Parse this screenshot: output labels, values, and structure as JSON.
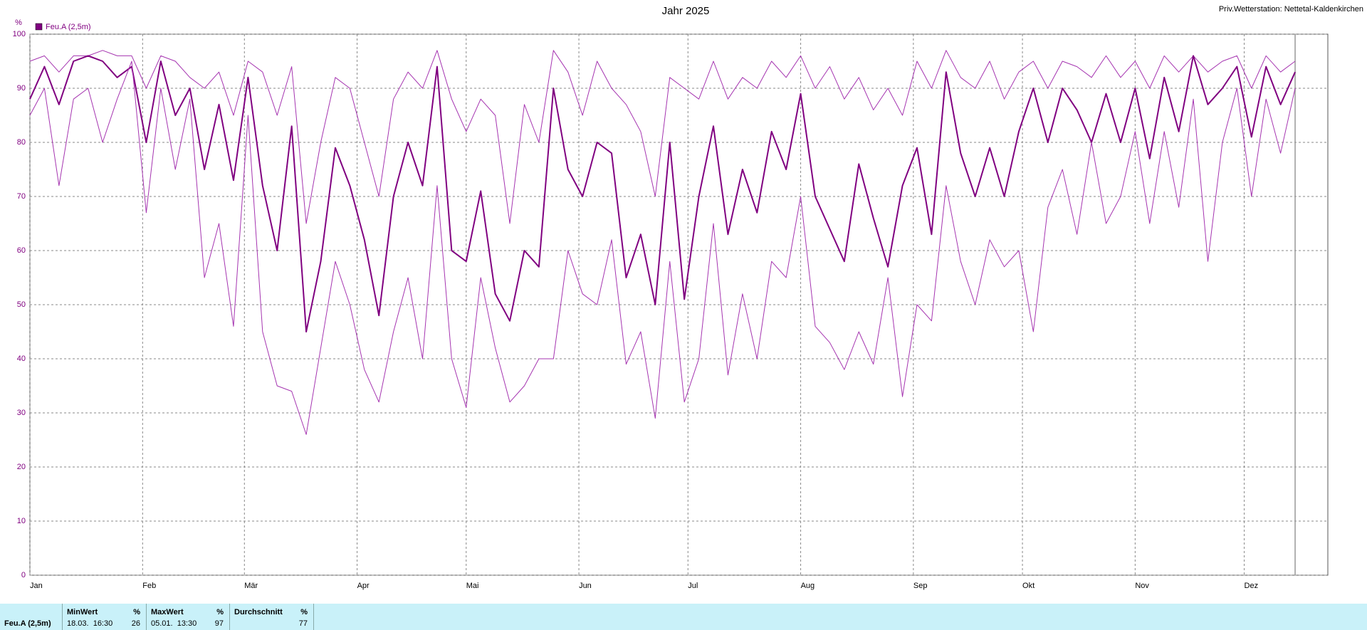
{
  "chart_data": {
    "type": "line",
    "title": "Jahr 2025",
    "subtitle": "Priv.Wetterstation: Nettetal-Kaldenkirchen",
    "y_label": "%",
    "x": [
      1,
      5,
      9,
      13,
      17,
      21,
      25,
      29,
      33,
      37,
      41,
      45,
      49,
      53,
      57,
      61,
      65,
      69,
      73,
      77,
      81,
      85,
      89,
      93,
      97,
      101,
      105,
      109,
      113,
      117,
      121,
      125,
      129,
      133,
      137,
      141,
      145,
      149,
      153,
      157,
      161,
      165,
      169,
      173,
      177,
      181,
      185,
      189,
      193,
      197,
      201,
      205,
      209,
      213,
      217,
      221,
      225,
      229,
      233,
      237,
      241,
      245,
      249,
      253,
      257,
      261,
      265,
      269,
      273,
      277,
      281,
      285,
      289,
      293,
      297,
      301,
      305,
      309,
      313,
      317,
      321,
      325,
      329,
      333,
      337,
      341,
      345,
      349
    ],
    "series": [
      {
        "color": "#a534b0",
        "width": 1,
        "values": [
          95,
          96,
          93,
          96,
          96,
          97,
          96,
          96,
          90,
          96,
          95,
          92,
          90,
          93,
          85,
          95,
          93,
          85,
          94,
          65,
          80,
          92,
          90,
          80,
          70,
          88,
          93,
          90,
          97,
          88,
          82,
          88,
          85,
          65,
          87,
          80,
          97,
          93,
          85,
          95,
          90,
          87,
          82,
          70,
          92,
          90,
          88,
          95,
          88,
          92,
          90,
          95,
          92,
          96,
          90,
          94,
          88,
          92,
          86,
          90,
          85,
          95,
          90,
          97,
          92,
          90,
          95,
          88,
          93,
          95,
          90,
          95,
          94,
          92,
          96,
          92,
          95,
          90,
          96,
          93,
          96,
          93,
          95,
          96,
          90,
          96,
          93,
          95
        ]
      },
      {
        "name": "Feu.A (2,5m)",
        "color": "#800080",
        "width": 2,
        "values": [
          88,
          94,
          87,
          95,
          96,
          95,
          92,
          94,
          80,
          95,
          85,
          90,
          75,
          87,
          73,
          92,
          72,
          60,
          83,
          45,
          58,
          79,
          72,
          62,
          48,
          70,
          80,
          72,
          94,
          60,
          58,
          71,
          52,
          47,
          60,
          57,
          90,
          75,
          70,
          80,
          78,
          55,
          63,
          50,
          80,
          51,
          70,
          83,
          63,
          75,
          67,
          82,
          75,
          89,
          70,
          64,
          58,
          76,
          66,
          57,
          72,
          79,
          63,
          93,
          78,
          70,
          79,
          70,
          82,
          90,
          80,
          90,
          86,
          80,
          89,
          80,
          90,
          77,
          92,
          82,
          96,
          87,
          90,
          94,
          81,
          94,
          87,
          93
        ]
      },
      {
        "color": "#a534b0",
        "width": 1,
        "values": [
          85,
          90,
          72,
          88,
          90,
          80,
          88,
          95,
          67,
          90,
          75,
          88,
          55,
          65,
          46,
          85,
          45,
          35,
          34,
          26,
          42,
          58,
          50,
          38,
          32,
          45,
          55,
          40,
          72,
          40,
          31,
          55,
          42,
          32,
          35,
          40,
          40,
          60,
          52,
          50,
          62,
          39,
          45,
          29,
          58,
          32,
          40,
          65,
          37,
          52,
          40,
          58,
          55,
          70,
          46,
          43,
          38,
          45,
          39,
          55,
          33,
          50,
          47,
          72,
          58,
          50,
          62,
          57,
          60,
          45,
          68,
          75,
          63,
          80,
          65,
          70,
          82,
          65,
          82,
          68,
          88,
          58,
          80,
          90,
          70,
          88,
          78,
          90
        ]
      }
    ],
    "xlim": [
      1,
      358
    ],
    "xticks": [
      {
        "value": 1,
        "label": "Jan"
      },
      {
        "value": 32,
        "label": "Feb"
      },
      {
        "value": 60,
        "label": "Mär"
      },
      {
        "value": 91,
        "label": "Apr"
      },
      {
        "value": 121,
        "label": "Mai"
      },
      {
        "value": 152,
        "label": "Jun"
      },
      {
        "value": 182,
        "label": "Jul"
      },
      {
        "value": 213,
        "label": "Aug"
      },
      {
        "value": 244,
        "label": "Sep"
      },
      {
        "value": 274,
        "label": "Okt"
      },
      {
        "value": 305,
        "label": "Nov"
      },
      {
        "value": 335,
        "label": "Dez"
      }
    ],
    "ylim": [
      0,
      100
    ],
    "yticks": [
      0,
      10,
      20,
      30,
      40,
      50,
      60,
      70,
      80,
      90,
      100
    ],
    "grid": true
  },
  "table": {
    "row_label": "Feu.A (2,5m)",
    "columns": [
      {
        "header": "MinWert",
        "unit": "%",
        "time": "18.03.  16:30",
        "value": 26
      },
      {
        "header": "MaxWert",
        "unit": "%",
        "time": "05.01.  13:30",
        "value": 97
      },
      {
        "header": "Durchschnitt",
        "unit": "%",
        "value": 77
      }
    ]
  }
}
